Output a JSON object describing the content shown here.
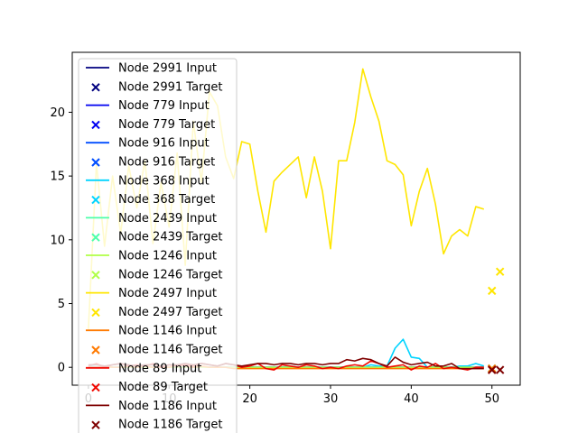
{
  "chart_data": {
    "type": "line",
    "title": "",
    "xlabel": "",
    "ylabel": "",
    "xlim": [
      -2,
      53.5
    ],
    "ylim": [
      -1.4,
      24.7
    ],
    "xticks": [
      0,
      10,
      20,
      30,
      40,
      50
    ],
    "yticks": [
      0,
      5,
      10,
      15,
      20
    ],
    "grid": false,
    "legend_position": "upper-left",
    "series": [
      {
        "name": "Node 2991 Input",
        "color": "#00007f",
        "values": [
          0,
          0,
          0,
          0,
          0,
          0,
          0,
          0,
          0,
          0,
          0,
          0,
          0,
          0,
          0,
          0,
          0,
          0,
          0,
          0,
          0,
          0,
          0,
          0,
          0,
          0,
          0,
          0,
          0,
          0,
          0,
          0,
          0,
          0,
          0,
          0,
          0,
          0,
          0,
          0,
          0,
          0,
          0,
          0,
          0,
          0,
          0,
          0,
          0,
          0
        ],
        "target": {
          "x": 50,
          "y": -0.1
        }
      },
      {
        "name": "Node 779 Input",
        "color": "#0000f1",
        "values": [
          0,
          0,
          0,
          0,
          0,
          0,
          0,
          0,
          0,
          0,
          0,
          0,
          0,
          0,
          0,
          0,
          0,
          0,
          0,
          0,
          0,
          0,
          0,
          0,
          0,
          0,
          0,
          0,
          0,
          0,
          0,
          0,
          0,
          0,
          0,
          0,
          0,
          0,
          0,
          0,
          0,
          0,
          0,
          0,
          0,
          0,
          0,
          0,
          0,
          0
        ],
        "target": {
          "x": 50,
          "y": -0.1
        }
      },
      {
        "name": "Node 916 Input",
        "color": "#004dff",
        "values": [
          0,
          0,
          0,
          0,
          0,
          0,
          0,
          0,
          0,
          0,
          0,
          0,
          0,
          0,
          0,
          0,
          0,
          0,
          0,
          0,
          0,
          0,
          0,
          0,
          0,
          0,
          0,
          0,
          0,
          0,
          0,
          0,
          0,
          0,
          0,
          0,
          0,
          0,
          0,
          0,
          0,
          0,
          0,
          0,
          0,
          0,
          0,
          0,
          0,
          0
        ],
        "target": {
          "x": 50,
          "y": -0.1
        }
      },
      {
        "name": "Node 368 Input",
        "color": "#00d4ff",
        "values": [
          0.1,
          0.2,
          0.1,
          0,
          0,
          0.1,
          0,
          0,
          0,
          0,
          0,
          0.1,
          0,
          0,
          0,
          0,
          0,
          0,
          0,
          0,
          0,
          0,
          0,
          0,
          0,
          0.1,
          0,
          0,
          0,
          0,
          0,
          0,
          0,
          0,
          0,
          0.2,
          0.1,
          0.1,
          1.5,
          2.2,
          0.8,
          0.7,
          0,
          0,
          0,
          0,
          0.1,
          0.1,
          0.3,
          0.1
        ],
        "target": {
          "x": 50,
          "y": -0.1
        }
      },
      {
        "name": "Node 2439 Input",
        "color": "#4dffaa",
        "values": [
          0,
          0,
          0,
          0,
          0,
          0,
          0,
          0,
          0,
          0,
          0,
          0,
          0,
          0,
          0,
          0,
          0,
          0,
          0,
          0,
          0,
          0,
          0,
          0,
          0,
          0,
          0,
          0,
          0,
          0,
          0,
          0,
          0,
          0,
          0,
          0,
          0,
          0,
          0,
          0,
          0,
          0,
          0,
          0,
          0,
          0,
          0,
          0,
          0,
          0
        ],
        "target": {
          "x": 50,
          "y": -0.1
        }
      },
      {
        "name": "Node 1246 Input",
        "color": "#b1ff46",
        "values": [
          0,
          0,
          0,
          0,
          0,
          0,
          0,
          0,
          0,
          0,
          0,
          0,
          0,
          0,
          0,
          0,
          0,
          0,
          0,
          0,
          0,
          0,
          0,
          0,
          0,
          0,
          0,
          0,
          0,
          0,
          0,
          0,
          0,
          0,
          0,
          0,
          0,
          0,
          0,
          0,
          0,
          0,
          0,
          0,
          0,
          0,
          0,
          0,
          0,
          0
        ],
        "target": {
          "x": 50,
          "y": -0.1
        }
      },
      {
        "name": "Node 2497 Input",
        "color": "#ffe600",
        "values": [
          3.0,
          16.0,
          9.5,
          15.0,
          10.5,
          15.8,
          12.5,
          16.2,
          9.7,
          14.5,
          11.0,
          16.8,
          8.0,
          19.3,
          14.5,
          21.6,
          20.5,
          16.5,
          14.8,
          17.7,
          17.5,
          13.8,
          10.6,
          14.6,
          15.3,
          15.9,
          16.5,
          13.3,
          16.5,
          13.8,
          9.3,
          16.2,
          16.2,
          19.2,
          23.4,
          21.2,
          19.3,
          16.2,
          15.9,
          15.1,
          11.1,
          13.8,
          15.6,
          12.8,
          8.9,
          10.3,
          10.8,
          10.3,
          12.6,
          12.4
        ],
        "target": {
          "x": 50,
          "y": 6.0
        },
        "target2": {
          "x": 51,
          "y": 7.5
        }
      },
      {
        "name": "Node 1146 Input",
        "color": "#ff7a00",
        "values": [
          0,
          0,
          0.1,
          0,
          0,
          0.1,
          0,
          0.1,
          0,
          0,
          0,
          0.2,
          0.1,
          0,
          0.1,
          0,
          0,
          0,
          -0.1,
          -0.1,
          -0.1,
          -0.1,
          -0.1,
          -0.1,
          -0.1,
          -0.1,
          -0.1,
          -0.1,
          -0.1,
          -0.1,
          -0.1,
          -0.1,
          -0.1,
          -0.1,
          -0.1,
          -0.1,
          -0.1,
          -0.1,
          -0.1,
          -0.1,
          -0.1,
          -0.1,
          -0.1,
          -0.1,
          -0.1,
          -0.1,
          -0.1,
          -0.1,
          -0.1,
          -0.1
        ],
        "target": {
          "x": 50,
          "y": -0.1
        }
      },
      {
        "name": "Node 89 Input",
        "color": "#f10800",
        "values": [
          0.1,
          0.3,
          0,
          0.2,
          0.3,
          0.1,
          0.2,
          0.1,
          0.3,
          0,
          0.2,
          0.1,
          0.2,
          0.1,
          0.3,
          0.2,
          0.1,
          0.3,
          0.2,
          0,
          0.1,
          0.3,
          -0.1,
          -0.2,
          0.2,
          0.1,
          0,
          0.2,
          0.1,
          -0.1,
          0,
          -0.1,
          0.1,
          0.2,
          0.1,
          0.5,
          0.3,
          0,
          0.1,
          0.2,
          -0.2,
          0.1,
          0,
          0.3,
          -0.1,
          0,
          -0.1,
          -0.2,
          0,
          0
        ],
        "target": {
          "x": 50,
          "y": -0.2
        }
      },
      {
        "name": "Node 1186 Input",
        "color": "#7f0000",
        "values": [
          0.2,
          0.2,
          0.1,
          0.2,
          0.3,
          0.2,
          0.1,
          0.2,
          0.2,
          0.1,
          0.2,
          0.2,
          0.3,
          0.2,
          0.3,
          0.2,
          0.1,
          0.3,
          0.2,
          0.1,
          0.2,
          0.3,
          0.3,
          0.2,
          0.3,
          0.3,
          0.2,
          0.3,
          0.3,
          0.2,
          0.3,
          0.3,
          0.6,
          0.5,
          0.7,
          0.6,
          0.3,
          0.1,
          0.8,
          0.4,
          0.2,
          0.3,
          0.4,
          0.1,
          0.1,
          0.3,
          -0.1,
          -0.1,
          -0.1,
          -0.1
        ],
        "target": {
          "x": 50,
          "y": -0.2
        },
        "target2": {
          "x": 51,
          "y": -0.2
        }
      }
    ],
    "legend": [
      {
        "label": "Node 2991 Input",
        "kind": "line",
        "color": "#00007f"
      },
      {
        "label": "Node 2991 Target",
        "kind": "marker",
        "color": "#00007f"
      },
      {
        "label": "Node 779 Input",
        "kind": "line",
        "color": "#0000f1"
      },
      {
        "label": "Node 779 Target",
        "kind": "marker",
        "color": "#0000f1"
      },
      {
        "label": "Node 916 Input",
        "kind": "line",
        "color": "#004dff"
      },
      {
        "label": "Node 916 Target",
        "kind": "marker",
        "color": "#004dff"
      },
      {
        "label": "Node 368 Input",
        "kind": "line",
        "color": "#00d4ff"
      },
      {
        "label": "Node 368 Target",
        "kind": "marker",
        "color": "#00d4ff"
      },
      {
        "label": "Node 2439 Input",
        "kind": "line",
        "color": "#4dffaa"
      },
      {
        "label": "Node 2439 Target",
        "kind": "marker",
        "color": "#4dffaa"
      },
      {
        "label": "Node 1246 Input",
        "kind": "line",
        "color": "#b1ff46"
      },
      {
        "label": "Node 1246 Target",
        "kind": "marker",
        "color": "#b1ff46"
      },
      {
        "label": "Node 2497 Input",
        "kind": "line",
        "color": "#ffe600"
      },
      {
        "label": "Node 2497 Target",
        "kind": "marker",
        "color": "#ffe600"
      },
      {
        "label": "Node 1146 Input",
        "kind": "line",
        "color": "#ff7a00"
      },
      {
        "label": "Node 1146 Target",
        "kind": "marker",
        "color": "#ff7a00"
      },
      {
        "label": "Node 89 Input",
        "kind": "line",
        "color": "#f10800"
      },
      {
        "label": "Node 89 Target",
        "kind": "marker",
        "color": "#f10800"
      },
      {
        "label": "Node 1186 Input",
        "kind": "line",
        "color": "#7f0000"
      },
      {
        "label": "Node 1186 Target",
        "kind": "marker",
        "color": "#7f0000"
      }
    ]
  }
}
